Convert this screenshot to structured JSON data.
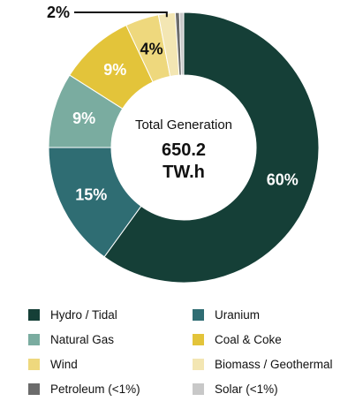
{
  "chart_data": {
    "type": "donut",
    "center": {
      "title": "Total Generation",
      "value": "650.2",
      "unit": "TW.h"
    },
    "slices": [
      {
        "name": "Hydro / Tidal",
        "value": 60,
        "label": "60%",
        "color": "#153f37",
        "label_color": "#ffffff"
      },
      {
        "name": "Uranium",
        "value": 15,
        "label": "15%",
        "color": "#2f6d73",
        "label_color": "#ffffff"
      },
      {
        "name": "Natural Gas",
        "value": 9,
        "label": "9%",
        "color": "#7aaca0",
        "label_color": "#ffffff"
      },
      {
        "name": "Coal & Coke",
        "value": 9,
        "label": "9%",
        "color": "#e3c43a",
        "label_color": "#ffffff"
      },
      {
        "name": "Wind",
        "value": 4,
        "label": "4%",
        "color": "#eed87d",
        "label_color": "#111111"
      },
      {
        "name": "Biomass / Geothermal",
        "value": 2,
        "label": "2%",
        "color": "#f3e6b3",
        "label_color": "#111111"
      },
      {
        "name": "Petroleum (<1%)",
        "value": 0.5,
        "label": "",
        "color": "#6b6b6b",
        "label_color": "#111111"
      },
      {
        "name": "Solar (<1%)",
        "value": 0.5,
        "label": "",
        "color": "#c8c8c8",
        "label_color": "#111111"
      }
    ]
  }
}
